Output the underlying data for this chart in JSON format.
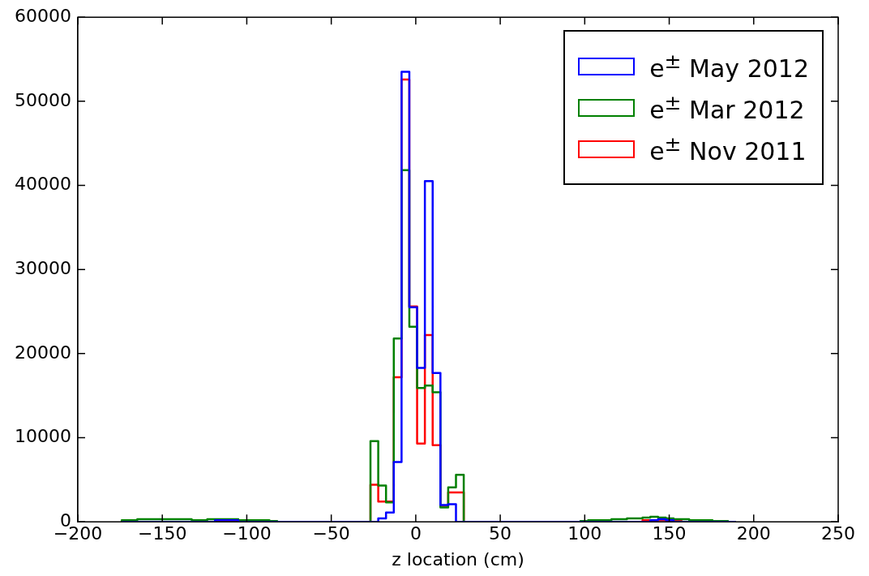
{
  "chart_data": {
    "type": "histogram",
    "xlabel": "z location (cm)",
    "bins": [
      -174.0,
      -169.4,
      -164.8,
      -160.2,
      -155.6,
      -151.0,
      -146.4,
      -141.8,
      -137.2,
      -132.6,
      -128.0,
      -123.4,
      -118.8,
      -114.2,
      -109.6,
      -105.0,
      -100.4,
      -95.8,
      -91.2,
      -86.6,
      -82.0,
      -77.4,
      -72.8,
      -68.2,
      -63.6,
      -59.0,
      -54.4,
      -49.8,
      -45.2,
      -40.6,
      -36.0,
      -31.4,
      -26.8,
      -22.2,
      -17.6,
      -13.0,
      -8.4,
      -3.8,
      0.8,
      5.4,
      10.0,
      14.6,
      19.2,
      23.8,
      28.4,
      33.0,
      37.6,
      42.2,
      46.8,
      51.4,
      56.0,
      60.6,
      65.2,
      69.8,
      74.4,
      79.0,
      83.6,
      88.2,
      92.8,
      97.4,
      102.0,
      106.6,
      111.2,
      115.8,
      120.4,
      125.0,
      129.6,
      134.2,
      138.8,
      143.4,
      148.0,
      152.6,
      157.2,
      161.8,
      166.4,
      171.0,
      175.6,
      180.2,
      184.8,
      189.4
    ],
    "series": [
      {
        "name": "e$^{±}$ May 2012",
        "color": "#0000ff",
        "values": [
          0,
          0,
          0,
          0,
          0,
          0,
          0,
          0,
          0,
          0,
          0,
          0,
          200,
          200,
          200,
          0,
          0,
          0,
          0,
          0,
          0,
          0,
          0,
          0,
          0,
          0,
          0,
          0,
          0,
          0,
          0,
          0,
          0,
          400,
          1100,
          7100,
          53500,
          25500,
          18300,
          40500,
          17700,
          2000,
          2100,
          0,
          0,
          0,
          0,
          0,
          0,
          0,
          0,
          0,
          0,
          0,
          0,
          0,
          0,
          0,
          0,
          0,
          0,
          0,
          0,
          0,
          0,
          0,
          0,
          0,
          200,
          300,
          200,
          0,
          0,
          0,
          0,
          0,
          0,
          0,
          0
        ]
      },
      {
        "name": "e$^{±}$ Mar 2012",
        "color": "#008000",
        "values": [
          200,
          200,
          300,
          300,
          300,
          300,
          300,
          300,
          300,
          200,
          200,
          300,
          300,
          300,
          300,
          200,
          200,
          200,
          200,
          100,
          0,
          0,
          0,
          0,
          0,
          0,
          0,
          0,
          0,
          0,
          0,
          0,
          9600,
          4300,
          2300,
          21800,
          41800,
          23200,
          15900,
          16200,
          15400,
          1700,
          4100,
          5600,
          0,
          0,
          0,
          0,
          0,
          0,
          0,
          0,
          0,
          0,
          0,
          0,
          0,
          0,
          0,
          100,
          200,
          200,
          200,
          300,
          300,
          400,
          400,
          500,
          600,
          500,
          400,
          300,
          300,
          200,
          200,
          200,
          100,
          100,
          0
        ]
      },
      {
        "name": "e$^{±}$ Nov 2011",
        "color": "#ff0000",
        "values": [
          0,
          0,
          0,
          0,
          0,
          0,
          0,
          0,
          0,
          0,
          0,
          0,
          100,
          100,
          100,
          0,
          0,
          0,
          0,
          0,
          0,
          0,
          0,
          0,
          0,
          0,
          0,
          0,
          0,
          0,
          0,
          0,
          4400,
          2400,
          2400,
          17200,
          52600,
          25600,
          9300,
          22200,
          9100,
          1900,
          3500,
          3500,
          0,
          0,
          0,
          0,
          0,
          0,
          0,
          0,
          0,
          0,
          0,
          0,
          0,
          0,
          0,
          0,
          0,
          0,
          0,
          0,
          0,
          0,
          0,
          200,
          200,
          200,
          200,
          200,
          0,
          0,
          0,
          0,
          0,
          0,
          0
        ]
      }
    ],
    "xlim": [
      -200,
      250
    ],
    "xticks": [
      -200,
      -150,
      -100,
      -50,
      0,
      50,
      100,
      150,
      200,
      250
    ],
    "ylim": [
      0,
      60000
    ],
    "yticks": [
      0,
      10000,
      20000,
      30000,
      40000,
      50000,
      60000
    ],
    "grid": false,
    "legend": "top right"
  }
}
